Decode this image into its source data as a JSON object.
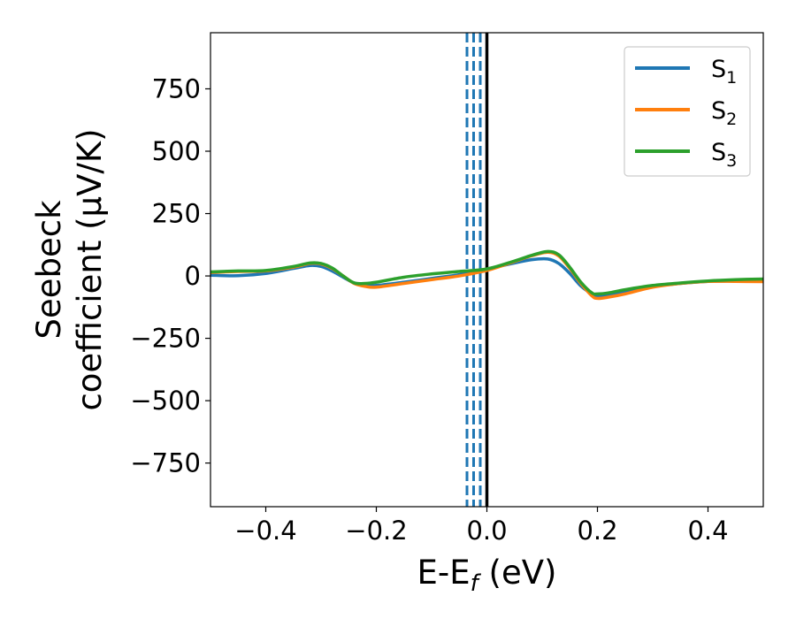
{
  "chart_data": {
    "type": "line",
    "title": "",
    "xlabel": {
      "main": "E-E",
      "sub": "f",
      "unit": " (eV)"
    },
    "ylabel": {
      "line1": "Seebeck",
      "line2": "coefficient  (μV/K)"
    },
    "xlim": [
      -0.5,
      0.5
    ],
    "ylim": [
      -925,
      975
    ],
    "xticks": [
      -0.4,
      -0.2,
      0.0,
      0.2,
      0.4
    ],
    "xtick_labels": [
      "−0.4",
      "−0.2",
      "0.0",
      "0.2",
      "0.4"
    ],
    "yticks": [
      -750,
      -500,
      -250,
      0,
      250,
      500,
      750
    ],
    "ytick_labels": [
      "−750",
      "−500",
      "−250",
      "0",
      "250",
      "500",
      "750"
    ],
    "grid": false,
    "legend_position": "top-right",
    "series": [
      {
        "name": "S",
        "sub": "1",
        "color": "#1f77b4",
        "x": [
          -0.5,
          -0.45,
          -0.4,
          -0.35,
          -0.32,
          -0.3,
          -0.28,
          -0.26,
          -0.24,
          -0.22,
          -0.2,
          -0.15,
          -0.1,
          -0.05,
          0.0,
          0.05,
          0.08,
          0.11,
          0.13,
          0.15,
          0.17,
          0.19,
          0.2,
          0.22,
          0.25,
          0.3,
          0.35,
          0.4,
          0.45,
          0.5
        ],
        "y": [
          3,
          1,
          10,
          30,
          42,
          38,
          20,
          -5,
          -28,
          -35,
          -38,
          -25,
          -10,
          5,
          28,
          52,
          65,
          68,
          50,
          10,
          -40,
          -72,
          -80,
          -75,
          -62,
          -42,
          -30,
          -22,
          -20,
          -18
        ]
      },
      {
        "name": "S",
        "sub": "2",
        "color": "#ff7f0e",
        "x": [
          -0.5,
          -0.45,
          -0.4,
          -0.35,
          -0.32,
          -0.3,
          -0.28,
          -0.26,
          -0.24,
          -0.22,
          -0.2,
          -0.15,
          -0.1,
          -0.05,
          0.0,
          0.05,
          0.08,
          0.11,
          0.13,
          0.15,
          0.17,
          0.19,
          0.2,
          0.22,
          0.25,
          0.3,
          0.35,
          0.4,
          0.45,
          0.5
        ],
        "y": [
          14,
          18,
          20,
          35,
          50,
          48,
          30,
          0,
          -30,
          -42,
          -45,
          -30,
          -15,
          0,
          22,
          58,
          80,
          95,
          80,
          30,
          -30,
          -80,
          -90,
          -85,
          -72,
          -45,
          -30,
          -22,
          -22,
          -23
        ]
      },
      {
        "name": "S",
        "sub": "3",
        "color": "#2ca02c",
        "x": [
          -0.5,
          -0.45,
          -0.4,
          -0.35,
          -0.32,
          -0.3,
          -0.28,
          -0.26,
          -0.24,
          -0.22,
          -0.2,
          -0.15,
          -0.1,
          -0.05,
          0.0,
          0.05,
          0.08,
          0.11,
          0.13,
          0.15,
          0.17,
          0.19,
          0.2,
          0.22,
          0.25,
          0.3,
          0.35,
          0.4,
          0.45,
          0.5
        ],
        "y": [
          16,
          20,
          22,
          38,
          52,
          50,
          32,
          0,
          -28,
          -30,
          -25,
          -5,
          8,
          18,
          28,
          60,
          82,
          98,
          85,
          35,
          -25,
          -68,
          -72,
          -68,
          -55,
          -38,
          -28,
          -20,
          -15,
          -12
        ]
      }
    ],
    "vlines": [
      {
        "x": -0.036,
        "color": "#1f77b4",
        "style": "dashed"
      },
      {
        "x": -0.024,
        "color": "#1f77b4",
        "style": "dashed"
      },
      {
        "x": -0.012,
        "color": "#1f77b4",
        "style": "dashed"
      },
      {
        "x": 0.0,
        "color": "#000000",
        "style": "solid"
      }
    ]
  }
}
